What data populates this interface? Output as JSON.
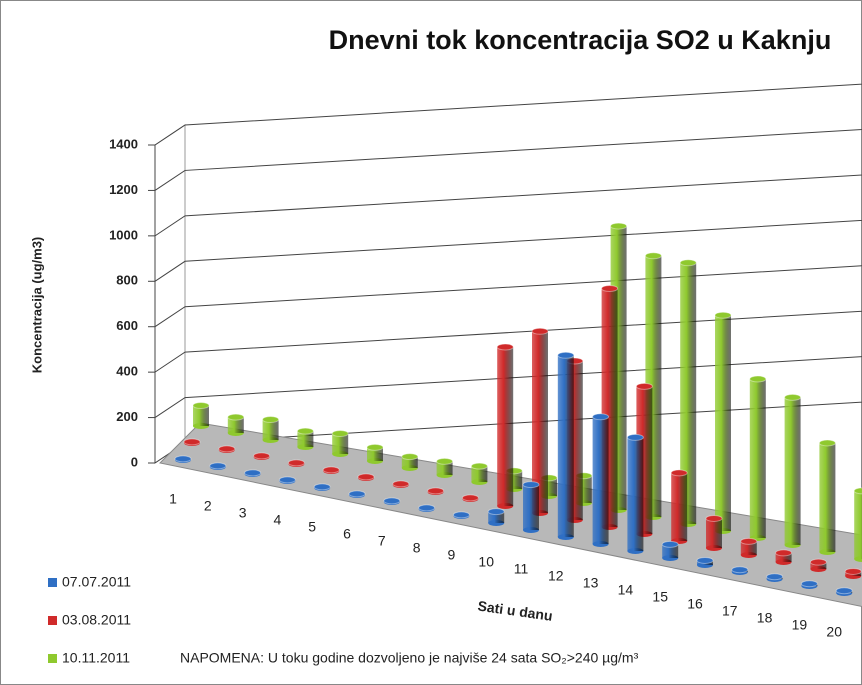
{
  "chart_data": {
    "type": "bar3d",
    "title": "Dnevni tok koncentracija SO2 u Kaknju",
    "y_label": "Koncentracija (ug/m3)",
    "x_label": "Sati u danu",
    "note": "NAPOMENA:  U toku godine dozvoljeno je najviše 24 sata SO₂>240 µg/m³",
    "categories": [
      "1",
      "2",
      "3",
      "4",
      "5",
      "6",
      "7",
      "8",
      "9",
      "10",
      "11",
      "12",
      "13",
      "14",
      "15",
      "16",
      "17",
      "18",
      "19",
      "20"
    ],
    "series": [
      {
        "name": "07.07.2011",
        "color": "#2f6fc4",
        "values": [
          5,
          5,
          5,
          5,
          5,
          5,
          5,
          5,
          5,
          50,
          200,
          800,
          560,
          500,
          60,
          20,
          10,
          10,
          10,
          10
        ]
      },
      {
        "name": "03.08.2011",
        "color": "#d02a2a",
        "values": [
          5,
          5,
          5,
          5,
          5,
          5,
          5,
          5,
          5,
          700,
          800,
          700,
          1050,
          650,
          300,
          130,
          60,
          40,
          30,
          20
        ]
      },
      {
        "name": "10.11.2011",
        "color": "#8fc92e",
        "values": [
          90,
          70,
          90,
          70,
          90,
          60,
          50,
          60,
          70,
          80,
          80,
          120,
          1250,
          1150,
          1150,
          950,
          700,
          650,
          480,
          300
        ]
      }
    ],
    "ylim": [
      0,
      1400
    ],
    "yticks": [
      0,
      200,
      400,
      600,
      800,
      1000,
      1200,
      1400
    ],
    "grid": true
  }
}
